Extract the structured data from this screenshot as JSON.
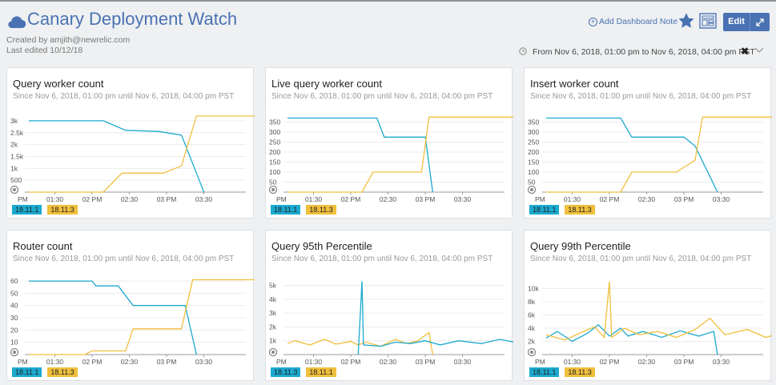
{
  "header": {
    "title": "Canary Deployment Watch",
    "created_by": "Created by amjith@newrelic.com",
    "last_edited": "Last edited 10/12/18",
    "add_note": "Add Dashboard Note",
    "edit_label": "Edit",
    "time_range": "From Nov 6, 2018, 01:00 pm to Nov 6, 2018, 04:00 pm PST",
    "clear_icon": "✖",
    "icons": [
      "cloud-icon",
      "plus-circle-icon",
      "star-icon",
      "tv-mode-icon",
      "expand-icon",
      "clock-icon",
      "close-icon",
      "chevron-down-icon"
    ]
  },
  "colors": {
    "accent": "#4a72b2",
    "series_a": "#1ba9cf",
    "series_b": "#f0bf3c"
  },
  "widgets": [
    {
      "title": "Query worker count",
      "subtitle": "Since Nov 6, 2018, 01:00 pm until Nov 6, 2018, 04:00 pm PST",
      "legend": [
        "18.11.1",
        "18.11.3"
      ]
    },
    {
      "title": "Live query worker count",
      "subtitle": "Since Nov 6, 2018, 01:00 pm until Nov 6, 2018, 04:00 pm PST",
      "legend": [
        "18.11.1",
        "18.11.3"
      ]
    },
    {
      "title": "Insert worker count",
      "subtitle": "Since Nov 6, 2018, 01:00 pm until Nov 6, 2018, 04:00 pm PST",
      "legend": [
        "18.11.1",
        "18.11.3"
      ]
    },
    {
      "title": "Router count",
      "subtitle": "Since Nov 6, 2018, 01:00 pm until Nov 6, 2018, 04:00 pm PST",
      "legend": [
        "18.11.1",
        "18.11.3"
      ]
    },
    {
      "title": "Query 95th Percentile",
      "subtitle": "Since Nov 6, 2018, 01:00 pm until Nov 6, 2018, 04:00 pm PST",
      "legend": [
        "18.11.3",
        "18.11.1"
      ]
    },
    {
      "title": "Query 99th Percentile",
      "subtitle": "Since Nov 6, 2018, 01:00 pm until Nov 6, 2018, 04:00 pm PST",
      "legend": [
        "18.11.1",
        "18.11.3"
      ]
    }
  ],
  "chart_data": [
    {
      "type": "line",
      "x": [
        "PM",
        "01:30",
        "02 PM",
        "02:30",
        "03 PM",
        "03:30"
      ],
      "yticks": [
        "500",
        "1k",
        "1.5k",
        "2k",
        "2.5k",
        "3k"
      ],
      "ylim": [
        0,
        3200
      ],
      "series": [
        {
          "name": "18.11.1",
          "color": "#1ba9cf",
          "points": [
            [
              0,
              3000
            ],
            [
              1.0,
              3000
            ],
            [
              1.3,
              2600
            ],
            [
              1.75,
              2550
            ],
            [
              2.05,
              2400
            ],
            [
              2.35,
              0
            ]
          ]
        },
        {
          "name": "18.11.3",
          "color": "#f0bf3c",
          "points": [
            [
              0,
              0
            ],
            [
              1.0,
              0
            ],
            [
              1.25,
              800
            ],
            [
              1.8,
              800
            ],
            [
              2.05,
              1100
            ],
            [
              2.25,
              3200
            ],
            [
              3.5,
              3200
            ]
          ]
        }
      ]
    },
    {
      "type": "line",
      "x": [
        "PM",
        "01:30",
        "02 PM",
        "02:30",
        "03 PM",
        "03:30"
      ],
      "yticks": [
        "50",
        "100",
        "150",
        "200",
        "250",
        "300",
        "350"
      ],
      "ylim": [
        0,
        380
      ],
      "series": [
        {
          "name": "18.11.1",
          "color": "#1ba9cf",
          "points": [
            [
              0,
              370
            ],
            [
              1.2,
              370
            ],
            [
              1.3,
              275
            ],
            [
              1.85,
              275
            ],
            [
              1.95,
              0
            ]
          ]
        },
        {
          "name": "18.11.3",
          "color": "#f0bf3c",
          "points": [
            [
              0,
              0
            ],
            [
              1.0,
              0
            ],
            [
              1.15,
              100
            ],
            [
              1.8,
              100
            ],
            [
              1.9,
              375
            ],
            [
              3.5,
              375
            ]
          ]
        }
      ]
    },
    {
      "type": "line",
      "x": [
        "PM",
        "01:30",
        "02 PM",
        "02:30",
        "03 PM",
        "03:30"
      ],
      "yticks": [
        "50",
        "100",
        "150",
        "200",
        "250",
        "300",
        "350"
      ],
      "ylim": [
        0,
        380
      ],
      "series": [
        {
          "name": "18.11.1",
          "color": "#1ba9cf",
          "points": [
            [
              0,
              370
            ],
            [
              1.0,
              370
            ],
            [
              1.15,
              275
            ],
            [
              1.85,
              275
            ],
            [
              2.0,
              230
            ],
            [
              2.3,
              0
            ]
          ]
        },
        {
          "name": "18.11.3",
          "color": "#f0bf3c",
          "points": [
            [
              0,
              0
            ],
            [
              1.0,
              0
            ],
            [
              1.15,
              100
            ],
            [
              1.75,
              100
            ],
            [
              2.0,
              160
            ],
            [
              2.1,
              375
            ],
            [
              3.5,
              375
            ]
          ]
        }
      ]
    },
    {
      "type": "line",
      "x": [
        "PM",
        "01:30",
        "02 PM",
        "02:30",
        "03 PM",
        "03:30"
      ],
      "yticks": [
        "10",
        "20",
        "30",
        "40",
        "50",
        "60"
      ],
      "ylim": [
        0,
        62
      ],
      "series": [
        {
          "name": "18.11.1",
          "color": "#1ba9cf",
          "points": [
            [
              0,
              60
            ],
            [
              0.85,
              60
            ],
            [
              0.9,
              56
            ],
            [
              1.2,
              56
            ],
            [
              1.4,
              40
            ],
            [
              2.1,
              40
            ],
            [
              2.25,
              0
            ]
          ]
        },
        {
          "name": "18.11.3",
          "color": "#f0bf3c",
          "points": [
            [
              0,
              0
            ],
            [
              0.75,
              0
            ],
            [
              0.85,
              3
            ],
            [
              1.3,
              3
            ],
            [
              1.4,
              21
            ],
            [
              2.05,
              21
            ],
            [
              2.2,
              61
            ],
            [
              3.5,
              61
            ]
          ]
        }
      ]
    },
    {
      "type": "line",
      "x": [
        "PM",
        "01:30",
        "02 PM",
        "02:30",
        "03 PM",
        "03:30"
      ],
      "yticks": [
        "1k",
        "2k",
        "3k",
        "4k",
        "5k"
      ],
      "ylim": [
        0,
        5500
      ],
      "series": [
        {
          "name": "18.11.3",
          "color": "#f0bf3c",
          "points": [
            [
              0,
              800
            ],
            [
              0.1,
              1000
            ],
            [
              0.3,
              700
            ],
            [
              0.5,
              1100
            ],
            [
              0.65,
              750
            ],
            [
              0.85,
              950
            ],
            [
              0.95,
              700
            ],
            [
              1.05,
              900
            ],
            [
              1.25,
              600
            ],
            [
              1.45,
              1100
            ],
            [
              1.6,
              800
            ],
            [
              1.75,
              1000
            ],
            [
              1.9,
              1600
            ],
            [
              1.95,
              0
            ]
          ]
        },
        {
          "name": "18.11.1",
          "color": "#1ba9cf",
          "points": [
            [
              0.95,
              0
            ],
            [
              1.0,
              5300
            ],
            [
              1.02,
              700
            ],
            [
              1.25,
              600
            ],
            [
              1.45,
              900
            ],
            [
              1.65,
              800
            ],
            [
              1.85,
              1000
            ],
            [
              2.05,
              700
            ],
            [
              2.3,
              1000
            ],
            [
              2.6,
              800
            ],
            [
              2.85,
              1100
            ],
            [
              3.05,
              900
            ],
            [
              3.25,
              700
            ],
            [
              3.5,
              900
            ]
          ]
        }
      ]
    },
    {
      "type": "line",
      "x": [
        "PM",
        "01:30",
        "02 PM",
        "02:30",
        "03 PM",
        "03:30"
      ],
      "yticks": [
        "2k",
        "4k",
        "6k",
        "8k",
        "10k"
      ],
      "ylim": [
        0,
        11500
      ],
      "series": [
        {
          "name": "18.11.1",
          "color": "#1ba9cf",
          "points": [
            [
              0,
              2500
            ],
            [
              0.15,
              3500
            ],
            [
              0.35,
              2000
            ],
            [
              0.55,
              3200
            ],
            [
              0.7,
              4500
            ],
            [
              0.85,
              2800
            ],
            [
              1.0,
              4000
            ],
            [
              1.1,
              2800
            ],
            [
              1.3,
              3500
            ],
            [
              1.55,
              2600
            ],
            [
              1.8,
              3600
            ],
            [
              2.05,
              2800
            ],
            [
              2.25,
              3500
            ],
            [
              2.3,
              0
            ]
          ]
        },
        {
          "name": "18.11.3",
          "color": "#f0bf3c",
          "points": [
            [
              0,
              3000
            ],
            [
              0.25,
              2200
            ],
            [
              0.5,
              3500
            ],
            [
              0.65,
              4200
            ],
            [
              0.78,
              2600
            ],
            [
              0.85,
              11000
            ],
            [
              0.88,
              2600
            ],
            [
              1.05,
              4000
            ],
            [
              1.25,
              3000
            ],
            [
              1.5,
              3500
            ],
            [
              1.75,
              2600
            ],
            [
              2.0,
              3800
            ],
            [
              2.2,
              5500
            ],
            [
              2.4,
              3000
            ],
            [
              2.7,
              3800
            ],
            [
              2.95,
              2600
            ],
            [
              3.2,
              3400
            ],
            [
              3.5,
              2500
            ]
          ]
        }
      ]
    }
  ]
}
